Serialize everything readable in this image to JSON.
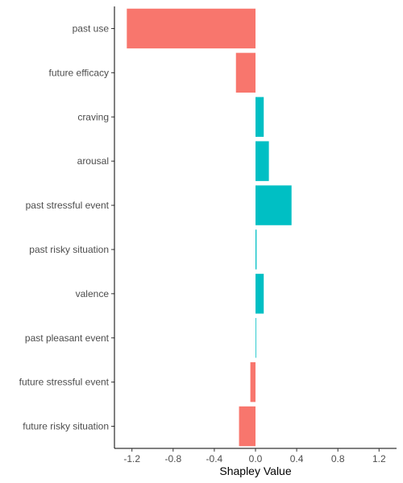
{
  "chart_data": {
    "type": "bar",
    "orientation": "horizontal",
    "title": "",
    "xlabel": "Shapley Value",
    "ylabel": "",
    "xlim": [
      -1.37,
      1.37
    ],
    "xticks": [
      -1.2,
      -0.8,
      -0.4,
      0.0,
      0.4,
      0.8,
      1.2
    ],
    "xtick_labels": [
      "-1.2",
      "-0.8",
      "-0.4",
      "0.0",
      "0.4",
      "0.8",
      "1.2"
    ],
    "grid": false,
    "legend": "none",
    "categories": [
      "past use",
      "future efficacy",
      "craving",
      "arousal",
      "past stressful event",
      "past risky situation",
      "valence",
      "past pleasant event",
      "future stressful event",
      "future risky situation"
    ],
    "values": [
      -1.25,
      -0.19,
      0.08,
      0.13,
      0.35,
      0.01,
      0.08,
      0.005,
      -0.05,
      -0.16
    ],
    "colors": {
      "negative": "#F8766D",
      "positive": "#00BFC4"
    }
  }
}
